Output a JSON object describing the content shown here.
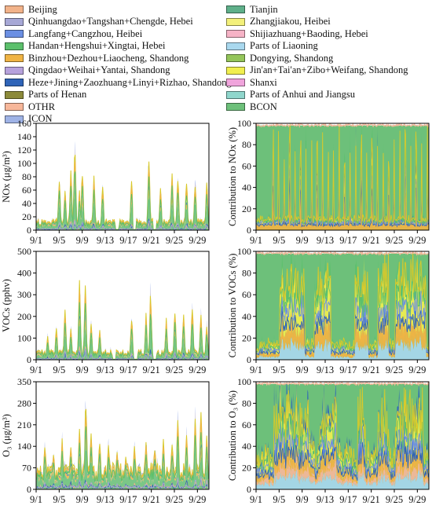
{
  "legend": {
    "items": [
      {
        "label": "Beijing",
        "color": "#f2b38a"
      },
      {
        "label": "Tianjin",
        "color": "#5fb08a"
      },
      {
        "label": "Qinhuangdao+Tangshan+Chengde, Hebei",
        "color": "#a7a8d6"
      },
      {
        "label": "Zhangjiakou, Heibei",
        "color": "#f3f07a"
      },
      {
        "label": "Langfang+Cangzhou, Heibei",
        "color": "#6b8fe3"
      },
      {
        "label": "Shijiazhuang+Baoding, Hebei",
        "color": "#f6b3c6"
      },
      {
        "label": "Handan+Hengshui+Xingtai, Hebei",
        "color": "#5cc06c"
      },
      {
        "label": "Parts of  Liaoning",
        "color": "#a9d8ee"
      },
      {
        "label": "Binzhou+Dezhou+Liaocheng, Shandong",
        "color": "#f0b444"
      },
      {
        "label": "Dongying, Shandong",
        "color": "#94c55a"
      },
      {
        "label": "Qingdao+Weihai+Yantai, Shandong",
        "color": "#b7a2dc"
      },
      {
        "label": "Jin'an+Tai'an+Zibo+Weifang, Shandong",
        "color": "#f1ef4f"
      },
      {
        "label": "Heze+Jining+Zaozhuang+Linyi+Rizhao, Shandong",
        "color": "#2f64b8"
      },
      {
        "label": "Shanxi",
        "color": "#f0a4dc"
      },
      {
        "label": "Parts of Henan",
        "color": "#8c8a3a"
      },
      {
        "label": "Parts of Anhui and Jiangsu",
        "color": "#8fd6cc"
      },
      {
        "label": "OTHR",
        "color": "#f7b79a"
      },
      {
        "label": "BCON",
        "color": "#6dc07a"
      },
      {
        "label": "ICON",
        "color": "#9fb3e6"
      }
    ]
  },
  "chart_data": [
    {
      "id": "nox-conc",
      "type": "area",
      "ylabel": "NOx (μg/m³)",
      "ylim": [
        0,
        160
      ],
      "yticks": [
        "0",
        "20",
        "40",
        "60",
        "80",
        "100",
        "120",
        "140",
        "160"
      ],
      "xticks": [
        "9/1",
        "9/5",
        "9/9",
        "9/13",
        "9/17",
        "9/21",
        "9/25",
        "9/29"
      ],
      "peaks": [
        [
          3,
          20
        ],
        [
          4,
          86
        ],
        [
          5,
          64
        ],
        [
          6,
          100
        ],
        [
          6.7,
          140
        ],
        [
          7.5,
          62
        ],
        [
          8,
          96
        ],
        [
          10,
          86
        ],
        [
          11.5,
          70
        ],
        [
          14,
          0
        ],
        [
          16.5,
          82
        ],
        [
          17,
          0
        ],
        [
          19.5,
          120
        ],
        [
          20.5,
          0
        ],
        [
          21.5,
          68
        ],
        [
          23.5,
          94
        ],
        [
          24.5,
          88
        ],
        [
          26,
          80
        ],
        [
          27.5,
          78
        ],
        [
          29.5,
          74
        ]
      ],
      "baseline": 18
    },
    {
      "id": "nox-contrib",
      "type": "area",
      "ylabel": "Contribution to NOx (%)",
      "ylim": [
        0,
        100
      ],
      "yticks": [
        "0",
        "20",
        "40",
        "60",
        "80",
        "100"
      ],
      "xticks": [
        "9/1",
        "9/5",
        "9/9",
        "9/13",
        "9/17",
        "9/21",
        "9/25",
        "9/29"
      ]
    },
    {
      "id": "vocs-conc",
      "type": "area",
      "ylabel": "VOCs (pphv)",
      "ylim": [
        0,
        500
      ],
      "yticks": [
        "0",
        "100",
        "200",
        "300",
        "400",
        "500"
      ],
      "xticks": [
        "9/1",
        "9/5",
        "9/9",
        "9/13",
        "9/17",
        "9/21",
        "9/25",
        "9/29"
      ],
      "peaks": [
        [
          2,
          120
        ],
        [
          3.5,
          160
        ],
        [
          5,
          250
        ],
        [
          6,
          160
        ],
        [
          7.5,
          400
        ],
        [
          8.5,
          380
        ],
        [
          9.5,
          180
        ],
        [
          11,
          150
        ],
        [
          13.5,
          0
        ],
        [
          16.5,
          220
        ],
        [
          17.2,
          0
        ],
        [
          19,
          220
        ],
        [
          19.8,
          310
        ],
        [
          20.5,
          0
        ],
        [
          22.5,
          200
        ],
        [
          24,
          250
        ],
        [
          25.5,
          230
        ],
        [
          27,
          260
        ],
        [
          28.5,
          230
        ],
        [
          29.5,
          180
        ]
      ],
      "baseline": 50
    },
    {
      "id": "vocs-contrib",
      "type": "area",
      "ylabel": "Contribution to VOCs (%)",
      "ylim": [
        0,
        100
      ],
      "yticks": [
        "0",
        "20",
        "40",
        "60",
        "80",
        "100"
      ],
      "xticks": [
        "9/1",
        "9/5",
        "9/9",
        "9/13",
        "9/17",
        "9/21",
        "9/25",
        "9/29"
      ]
    },
    {
      "id": "o3-conc",
      "type": "area",
      "ylabel": "O₃ (μg/m³)",
      "ylim": [
        0,
        350
      ],
      "yticks": [
        "0",
        "70",
        "140",
        "210",
        "280",
        "350"
      ],
      "xticks": [
        "9/1",
        "9/5",
        "9/9",
        "9/13",
        "9/17",
        "9/21",
        "9/25",
        "9/29"
      ],
      "peaks": [
        [
          1.5,
          160
        ],
        [
          3,
          140
        ],
        [
          4.5,
          180
        ],
        [
          6,
          160
        ],
        [
          7.5,
          230
        ],
        [
          8.6,
          330
        ],
        [
          9.5,
          200
        ],
        [
          11,
          180
        ],
        [
          12.5,
          170
        ],
        [
          14,
          150
        ],
        [
          15.5,
          120
        ],
        [
          17,
          150
        ],
        [
          19,
          180
        ],
        [
          20.5,
          160
        ],
        [
          22,
          190
        ],
        [
          23.5,
          170
        ],
        [
          24.5,
          260
        ],
        [
          26,
          200
        ],
        [
          27.5,
          250
        ],
        [
          28.5,
          280
        ],
        [
          29.5,
          200
        ]
      ],
      "baseline": 90
    },
    {
      "id": "o3-contrib",
      "type": "area",
      "ylabel": "Contribution to O₃ (%)",
      "ylim": [
        0,
        100
      ],
      "yticks": [
        "0",
        "20",
        "40",
        "60",
        "80",
        "100"
      ],
      "xticks": [
        "9/1",
        "9/5",
        "9/9",
        "9/13",
        "9/17",
        "9/21",
        "9/25",
        "9/29"
      ]
    }
  ]
}
